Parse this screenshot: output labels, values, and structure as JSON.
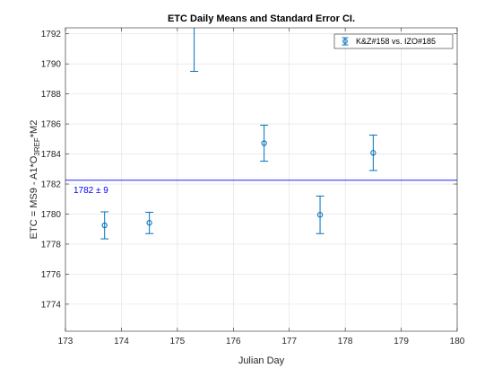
{
  "chart_data": {
    "type": "scatter",
    "title": "ETC Daily Means and Standard Error CI.",
    "xlabel": "Julian Day",
    "ylabel": {
      "prefix": "ETC =  MS9 - A1*O",
      "sub": "3REF",
      "suffix": "*M2"
    },
    "xlim": [
      173,
      180
    ],
    "ylim": [
      1772.2,
      1792.4
    ],
    "xticks": [
      173,
      174,
      175,
      176,
      177,
      178,
      179,
      180
    ],
    "yticks": [
      1774,
      1776,
      1778,
      1780,
      1782,
      1784,
      1786,
      1788,
      1790,
      1792
    ],
    "grid": true,
    "legend_position": "top-right",
    "series": [
      {
        "name": "K&Z#158 vs. IZO#185",
        "color": "#0072BD",
        "points": [
          {
            "x": 173.7,
            "y": 1779.25,
            "lower": 1778.35,
            "upper": 1780.15
          },
          {
            "x": 174.5,
            "y": 1779.42,
            "lower": 1778.7,
            "upper": 1780.12
          },
          {
            "x": 175.3,
            "y": 1792.9,
            "lower": 1789.5,
            "upper": 1796.3
          },
          {
            "x": 176.55,
            "y": 1784.72,
            "lower": 1783.52,
            "upper": 1785.92
          },
          {
            "x": 177.55,
            "y": 1779.95,
            "lower": 1778.7,
            "upper": 1781.2
          },
          {
            "x": 178.5,
            "y": 1784.08,
            "lower": 1782.9,
            "upper": 1785.26
          }
        ]
      }
    ],
    "reference_line": {
      "y": 1782.25,
      "color": "#0000FF",
      "label": "1782 ± 9"
    }
  }
}
